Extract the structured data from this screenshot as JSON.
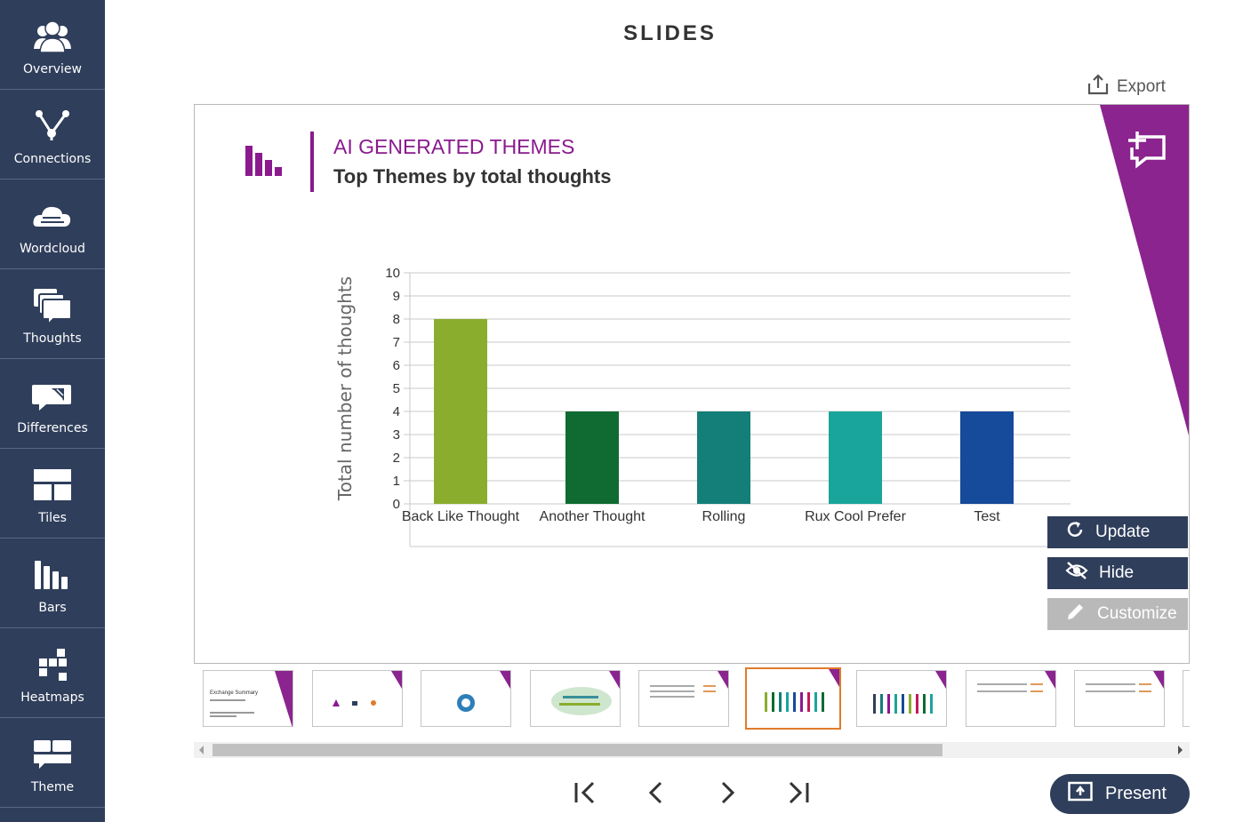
{
  "sidebar": {
    "items": [
      {
        "label": "Overview",
        "icon": "users-icon"
      },
      {
        "label": "Connections",
        "icon": "connections-icon"
      },
      {
        "label": "Wordcloud",
        "icon": "cloud-icon"
      },
      {
        "label": "Thoughts",
        "icon": "thoughts-icon"
      },
      {
        "label": "Differences",
        "icon": "differences-icon"
      },
      {
        "label": "Tiles",
        "icon": "tiles-icon"
      },
      {
        "label": "Bars",
        "icon": "bars-icon"
      },
      {
        "label": "Heatmaps",
        "icon": "heatmap-icon"
      },
      {
        "label": "Theme",
        "icon": "theme-icon"
      }
    ]
  },
  "header": {
    "title": "SLIDES",
    "export_label": "Export"
  },
  "slide": {
    "heading": "AI GENERATED THEMES",
    "subheading": "Top Themes by total thoughts",
    "accent_color": "#8a1a8e"
  },
  "actions": {
    "update_label": "Update",
    "hide_label": "Hide",
    "customize_label": "Customize"
  },
  "thumbnails": [
    {
      "title": "Exchange Summary",
      "active": false
    },
    {
      "title": "",
      "active": false
    },
    {
      "title": "",
      "active": false
    },
    {
      "title": "",
      "active": false
    },
    {
      "title": "",
      "active": false
    },
    {
      "title": "",
      "active": true
    },
    {
      "title": "",
      "active": false
    },
    {
      "title": "",
      "active": false
    },
    {
      "title": "",
      "active": false
    }
  ],
  "footer": {
    "present_label": "Present"
  },
  "chart_data": {
    "type": "bar",
    "categories": [
      "Back Like Thought",
      "Another Thought",
      "Rolling",
      "Rux Cool Prefer",
      "Test"
    ],
    "values": [
      8,
      4,
      4,
      4,
      4
    ],
    "colors": [
      "#8aad2e",
      "#0f6b32",
      "#137f78",
      "#19a59b",
      "#164a9a"
    ],
    "xlabel": "",
    "ylabel": "Total number of thoughts",
    "ylim": [
      0,
      10
    ],
    "yticks": [
      0,
      1,
      2,
      3,
      4,
      5,
      6,
      7,
      8,
      9,
      10
    ],
    "grid": true
  }
}
